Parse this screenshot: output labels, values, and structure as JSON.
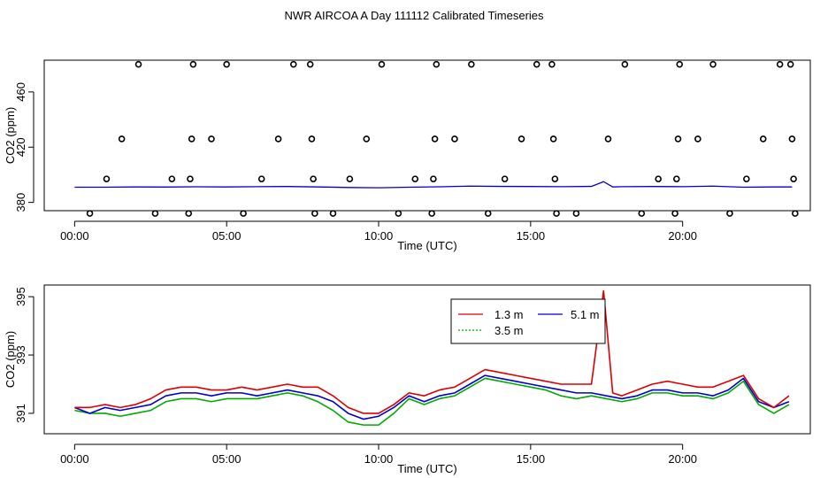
{
  "title": "NWR AIRCOA A  Day 111112  Calibrated Timeseries",
  "chart_data": [
    {
      "type": "scatter",
      "xlabel": "Time (UTC)",
      "ylabel": "CO2 (ppm)",
      "xlim": [
        -1.0,
        24.2
      ],
      "ylim": [
        374,
        483
      ],
      "x_ticks": [
        0,
        5,
        10,
        15,
        20
      ],
      "x_tick_labels": [
        "00:00",
        "05:00",
        "10:00",
        "15:00",
        "20:00"
      ],
      "y_ticks": [
        380,
        420,
        460
      ],
      "y_tick_labels": [
        "380",
        "420",
        "460"
      ],
      "line_color": "#0000cc",
      "point_color": "#000000",
      "line": {
        "name": "timeseries",
        "x": [
          0,
          1,
          2,
          3,
          4,
          5,
          6,
          7,
          8,
          9,
          10,
          11,
          12,
          13,
          14,
          15,
          16,
          17,
          17.4,
          17.7,
          18,
          19,
          20,
          21,
          22,
          23,
          23.6
        ],
        "y": [
          391,
          391,
          391.2,
          391.1,
          391.3,
          391.2,
          391.4,
          391.5,
          391.2,
          390.8,
          390.6,
          391,
          391.3,
          391.8,
          391.6,
          391.5,
          391.4,
          391.6,
          395,
          391.2,
          391.4,
          391.5,
          391.4,
          391.8,
          391,
          391.2,
          391.2
        ]
      },
      "points": [
        {
          "x": 0.5,
          "y": 372
        },
        {
          "x": 1.05,
          "y": 397
        },
        {
          "x": 1.55,
          "y": 426
        },
        {
          "x": 2.1,
          "y": 480
        },
        {
          "x": 2.65,
          "y": 372
        },
        {
          "x": 3.2,
          "y": 397
        },
        {
          "x": 3.75,
          "y": 372
        },
        {
          "x": 3.8,
          "y": 397
        },
        {
          "x": 3.85,
          "y": 426
        },
        {
          "x": 3.9,
          "y": 480
        },
        {
          "x": 4.5,
          "y": 426
        },
        {
          "x": 5.0,
          "y": 480
        },
        {
          "x": 5.55,
          "y": 372
        },
        {
          "x": 6.15,
          "y": 397
        },
        {
          "x": 6.7,
          "y": 426
        },
        {
          "x": 7.2,
          "y": 480
        },
        {
          "x": 7.75,
          "y": 480
        },
        {
          "x": 7.8,
          "y": 426
        },
        {
          "x": 7.85,
          "y": 397
        },
        {
          "x": 7.9,
          "y": 372
        },
        {
          "x": 8.5,
          "y": 372
        },
        {
          "x": 9.05,
          "y": 397
        },
        {
          "x": 9.6,
          "y": 426
        },
        {
          "x": 10.1,
          "y": 480
        },
        {
          "x": 10.65,
          "y": 372
        },
        {
          "x": 11.2,
          "y": 397
        },
        {
          "x": 11.75,
          "y": 372
        },
        {
          "x": 11.8,
          "y": 397
        },
        {
          "x": 11.85,
          "y": 426
        },
        {
          "x": 11.9,
          "y": 480
        },
        {
          "x": 12.5,
          "y": 426
        },
        {
          "x": 13.05,
          "y": 480
        },
        {
          "x": 13.6,
          "y": 372
        },
        {
          "x": 14.15,
          "y": 397
        },
        {
          "x": 14.7,
          "y": 426
        },
        {
          "x": 15.2,
          "y": 480
        },
        {
          "x": 15.7,
          "y": 480
        },
        {
          "x": 15.75,
          "y": 426
        },
        {
          "x": 15.8,
          "y": 397
        },
        {
          "x": 15.85,
          "y": 372
        },
        {
          "x": 16.5,
          "y": 372
        },
        {
          "x": 17.55,
          "y": 426
        },
        {
          "x": 18.1,
          "y": 480
        },
        {
          "x": 18.65,
          "y": 372
        },
        {
          "x": 19.2,
          "y": 397
        },
        {
          "x": 19.75,
          "y": 372
        },
        {
          "x": 19.8,
          "y": 397
        },
        {
          "x": 19.85,
          "y": 426
        },
        {
          "x": 19.9,
          "y": 480
        },
        {
          "x": 20.5,
          "y": 426
        },
        {
          "x": 21.0,
          "y": 480
        },
        {
          "x": 21.55,
          "y": 372
        },
        {
          "x": 22.1,
          "y": 397
        },
        {
          "x": 22.65,
          "y": 426
        },
        {
          "x": 23.2,
          "y": 480
        },
        {
          "x": 23.55,
          "y": 480
        },
        {
          "x": 23.6,
          "y": 426
        },
        {
          "x": 23.65,
          "y": 397
        },
        {
          "x": 23.7,
          "y": 372
        }
      ]
    },
    {
      "type": "line",
      "xlabel": "Time (UTC)",
      "ylabel": "CO2 (ppm)",
      "xlim": [
        -1.0,
        24.2
      ],
      "ylim": [
        390.3,
        395.4
      ],
      "x_ticks": [
        0,
        5,
        10,
        15,
        20
      ],
      "x_tick_labels": [
        "00:00",
        "05:00",
        "10:00",
        "15:00",
        "20:00"
      ],
      "y_ticks": [
        391,
        393,
        395
      ],
      "y_tick_labels": [
        "391",
        "393",
        "395"
      ],
      "legend": {
        "placement": "top-center",
        "entries": [
          {
            "label": "1.3 m",
            "color": "#dd0000",
            "style": "solid"
          },
          {
            "label": "5.1 m",
            "color": "#0000cc",
            "style": "solid"
          },
          {
            "label": "3.5 m",
            "color": "#00aa00",
            "style": "dotted"
          }
        ]
      },
      "series": [
        {
          "name": "1.3 m",
          "color": "#dd0000",
          "x": [
            0,
            0.5,
            1,
            1.5,
            2,
            2.5,
            3,
            3.5,
            4,
            4.5,
            5,
            5.5,
            6,
            6.5,
            7,
            7.5,
            8,
            8.5,
            9,
            9.5,
            10,
            10.5,
            11,
            11.5,
            12,
            12.5,
            13,
            13.5,
            14,
            14.5,
            15,
            15.5,
            16,
            16.5,
            17,
            17.4,
            17.7,
            18,
            18.5,
            19,
            19.5,
            20,
            20.5,
            21,
            21.5,
            22,
            22.5,
            23,
            23.5
          ],
          "y": [
            391.2,
            391.2,
            391.3,
            391.2,
            391.3,
            391.5,
            391.8,
            391.9,
            391.9,
            391.8,
            391.8,
            391.9,
            391.8,
            391.9,
            392.0,
            391.9,
            391.9,
            391.6,
            391.2,
            391.0,
            391.0,
            391.3,
            391.7,
            391.6,
            391.8,
            391.9,
            392.2,
            392.5,
            392.4,
            392.3,
            392.2,
            392.1,
            392.0,
            392.0,
            392.0,
            395.2,
            391.7,
            391.6,
            391.8,
            392.0,
            392.1,
            392.0,
            391.9,
            391.9,
            392.1,
            392.3,
            391.5,
            391.2,
            391.6
          ]
        },
        {
          "name": "5.1 m",
          "color": "#0000cc",
          "x": [
            0,
            0.5,
            1,
            1.5,
            2,
            2.5,
            3,
            3.5,
            4,
            4.5,
            5,
            5.5,
            6,
            6.5,
            7,
            7.5,
            8,
            8.5,
            9,
            9.5,
            10,
            10.5,
            11,
            11.5,
            12,
            12.5,
            13,
            13.5,
            14,
            14.5,
            15,
            15.5,
            16,
            16.5,
            17,
            17.5,
            18,
            18.5,
            19,
            19.5,
            20,
            20.5,
            21,
            21.5,
            22,
            22.5,
            23,
            23.5
          ],
          "y": [
            391.2,
            391.0,
            391.2,
            391.1,
            391.2,
            391.3,
            391.6,
            391.7,
            391.7,
            391.6,
            391.7,
            391.7,
            391.6,
            391.7,
            391.8,
            391.7,
            391.6,
            391.4,
            391.0,
            390.8,
            390.9,
            391.2,
            391.6,
            391.4,
            391.6,
            391.7,
            392.0,
            392.3,
            392.2,
            392.1,
            392.0,
            391.9,
            391.8,
            391.7,
            391.7,
            391.6,
            391.5,
            391.6,
            391.8,
            391.8,
            391.7,
            391.7,
            391.6,
            391.8,
            392.2,
            391.4,
            391.2,
            391.4
          ]
        },
        {
          "name": "3.5 m",
          "color": "#00aa00",
          "x": [
            0,
            0.5,
            1,
            1.5,
            2,
            2.5,
            3,
            3.5,
            4,
            4.5,
            5,
            5.5,
            6,
            6.5,
            7,
            7.5,
            8,
            8.5,
            9,
            9.5,
            10,
            10.5,
            11,
            11.5,
            12,
            12.5,
            13,
            13.5,
            14,
            14.5,
            15,
            15.5,
            16,
            16.5,
            17,
            17.5,
            18,
            18.5,
            19,
            19.5,
            20,
            20.5,
            21,
            21.5,
            22,
            22.5,
            23,
            23.5
          ],
          "y": [
            391.1,
            391.0,
            391.0,
            390.9,
            391.0,
            391.1,
            391.4,
            391.5,
            391.5,
            391.4,
            391.5,
            391.5,
            391.5,
            391.6,
            391.7,
            391.6,
            391.4,
            391.1,
            390.7,
            390.6,
            390.6,
            391.0,
            391.5,
            391.3,
            391.5,
            391.6,
            391.9,
            392.2,
            392.1,
            392.0,
            391.9,
            391.8,
            391.6,
            391.5,
            391.6,
            391.5,
            391.4,
            391.5,
            391.7,
            391.7,
            391.6,
            391.6,
            391.5,
            391.7,
            392.1,
            391.3,
            391.0,
            391.3
          ]
        }
      ]
    }
  ]
}
